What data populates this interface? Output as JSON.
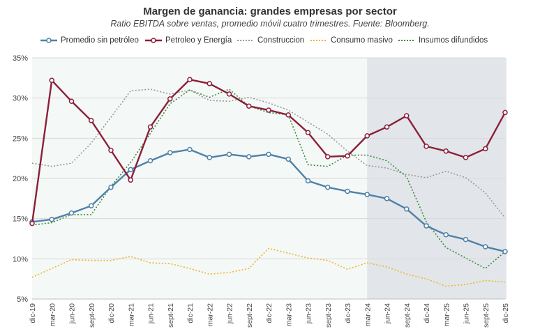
{
  "chart_data": {
    "type": "line",
    "title": "Margen de ganancia: grandes empresas por sector",
    "subtitle": "Ratio EBITDA sobre ventas, promedio móvil cuatro trimestres. Fuente: Bloomberg.",
    "categories": [
      "dic-19",
      "mar-20",
      "jun-20",
      "sept-20",
      "dic-20",
      "mar-21",
      "jun-21",
      "sept-21",
      "dic-21",
      "mar-22",
      "jun-22",
      "sept-22",
      "dic-22",
      "mar-23",
      "jun-23",
      "sept-23",
      "dic-23",
      "mar-24",
      "jun-24",
      "sept-24",
      "dic-24",
      "mar-25",
      "jun-25",
      "sept-25",
      "dic-25"
    ],
    "y_ticks": [
      "5%",
      "10%",
      "15%",
      "20%",
      "25%",
      "30%",
      "35%"
    ],
    "ylim": [
      5,
      35
    ],
    "shaded_region": {
      "from": "mar-24",
      "to": "dic-25",
      "color": "#e2e6ea"
    },
    "plot_bg": "#f4f8f6",
    "series": [
      {
        "name": "Promedio sin petróleo",
        "color": "#4f81a8",
        "style": "solid-marker",
        "values": [
          14.6,
          14.9,
          15.7,
          16.6,
          18.9,
          21.1,
          22.2,
          23.2,
          23.6,
          22.6,
          23.0,
          22.7,
          23.0,
          22.4,
          19.7,
          18.9,
          18.4,
          18.0,
          17.5,
          16.2,
          14.1,
          13.0,
          12.4,
          11.5,
          10.9
        ]
      },
      {
        "name": "Petroleo y Energía",
        "color": "#8b1f3a",
        "style": "solid-marker",
        "values": [
          14.4,
          32.2,
          29.6,
          27.2,
          23.5,
          19.8,
          26.4,
          29.9,
          32.3,
          31.8,
          30.5,
          29.0,
          28.5,
          27.9,
          25.7,
          22.7,
          22.8,
          25.3,
          26.4,
          27.8,
          24.0,
          23.4,
          22.6,
          23.7,
          28.2
        ]
      },
      {
        "name": "Construccion",
        "color": "#999999",
        "style": "dotted",
        "values": [
          21.9,
          21.5,
          21.9,
          24.4,
          27.6,
          30.9,
          31.1,
          30.5,
          31.0,
          29.7,
          29.6,
          30.1,
          29.4,
          28.5,
          27.0,
          25.5,
          23.4,
          21.6,
          21.3,
          20.5,
          20.1,
          20.9,
          20.1,
          18.2,
          15.1
        ]
      },
      {
        "name": "Consumo masivo",
        "color": "#f0b429",
        "style": "dotted",
        "values": [
          7.7,
          8.8,
          9.9,
          9.8,
          9.8,
          10.3,
          9.5,
          9.4,
          8.8,
          8.1,
          8.3,
          8.8,
          11.3,
          10.7,
          10.1,
          9.8,
          8.7,
          9.5,
          9.0,
          8.1,
          7.5,
          6.6,
          6.8,
          7.3,
          7.1
        ]
      },
      {
        "name": "Insumos difundidos",
        "color": "#3d8a3d",
        "style": "dotted",
        "values": [
          14.2,
          14.5,
          15.5,
          15.5,
          19.0,
          22.0,
          25.6,
          29.3,
          31.0,
          30.1,
          31.1,
          29.0,
          28.2,
          27.9,
          21.7,
          21.5,
          22.9,
          22.9,
          22.2,
          20.2,
          14.6,
          11.4,
          10.1,
          8.8,
          10.9
        ]
      }
    ]
  }
}
